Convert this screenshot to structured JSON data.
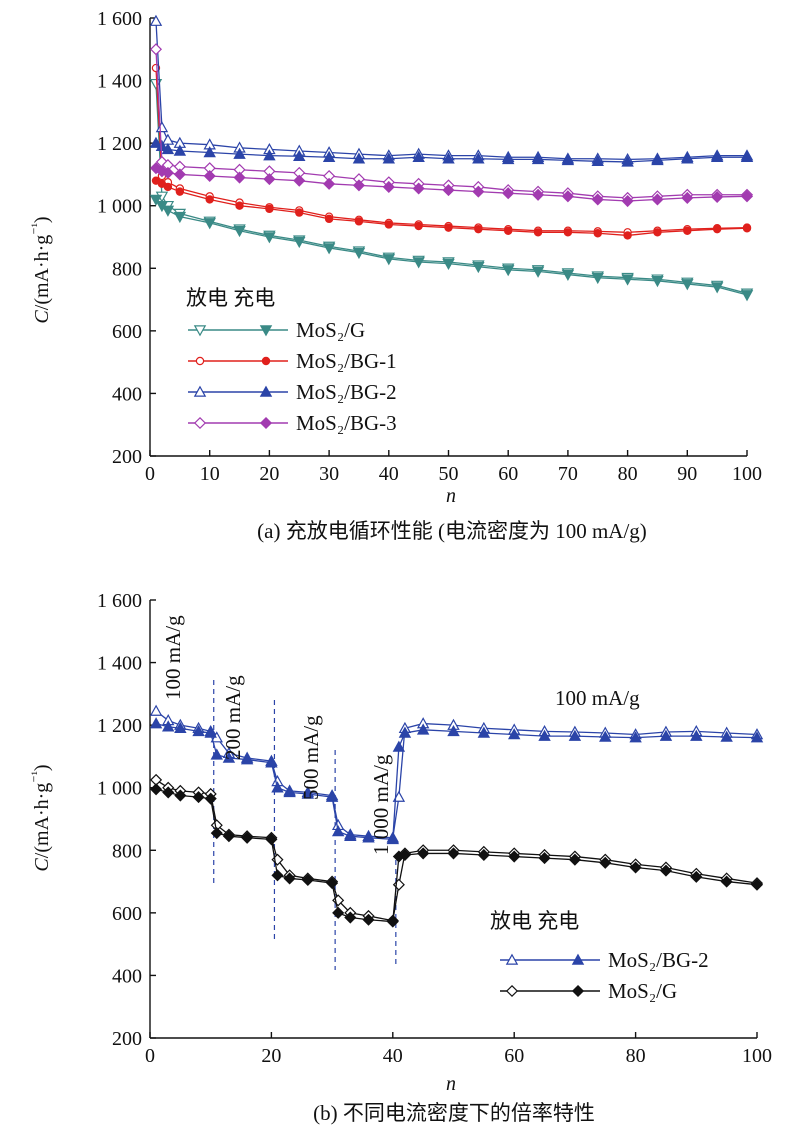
{
  "figure": {
    "captions": {
      "a": "(a) 充放电循环性能 (电流密度为 100 mA/g)",
      "b": "(b) 不同电流密度下的倍率特性"
    }
  },
  "chart_data": [
    {
      "id": "a",
      "type": "line",
      "ylabel": "C/(mA·h·g⁻¹)",
      "xlabel": "n",
      "ylim": [
        200,
        1600
      ],
      "xlim": [
        0,
        100
      ],
      "yticks": [
        200,
        400,
        600,
        800,
        1000,
        1200,
        1400,
        1600
      ],
      "ytick_labels": [
        "200",
        "400",
        "600",
        "800",
        "1 000",
        "1 200",
        "1 400",
        "1 600"
      ],
      "xticks": [
        0,
        10,
        20,
        30,
        40,
        50,
        60,
        70,
        80,
        90,
        100
      ],
      "legend_header": "放电 充电",
      "legend_position": "lower-left",
      "series": [
        {
          "name": "MoS₂/G",
          "color": "#3a8a86",
          "marker": "tri_down",
          "x": [
            1,
            2,
            3,
            5,
            10,
            15,
            20,
            25,
            30,
            35,
            40,
            45,
            50,
            55,
            60,
            65,
            70,
            75,
            80,
            85,
            90,
            95,
            100
          ],
          "discharge": [
            1390,
            1030,
            1000,
            975,
            950,
            925,
            905,
            890,
            870,
            855,
            835,
            825,
            820,
            810,
            800,
            795,
            785,
            775,
            770,
            765,
            755,
            745,
            720
          ],
          "charge": [
            1020,
            1000,
            985,
            965,
            945,
            920,
            900,
            885,
            865,
            850,
            830,
            820,
            815,
            805,
            795,
            790,
            780,
            770,
            765,
            760,
            750,
            740,
            715
          ]
        },
        {
          "name": "MoS₂/BG-1",
          "color": "#e0201c",
          "marker": "circle",
          "x": [
            1,
            2,
            3,
            5,
            10,
            15,
            20,
            25,
            30,
            35,
            40,
            45,
            50,
            55,
            60,
            65,
            70,
            75,
            80,
            85,
            90,
            95,
            100
          ],
          "discharge": [
            1440,
            1095,
            1075,
            1055,
            1030,
            1010,
            995,
            985,
            965,
            955,
            945,
            940,
            935,
            930,
            925,
            920,
            920,
            918,
            915,
            920,
            925,
            928,
            930
          ],
          "charge": [
            1080,
            1070,
            1060,
            1045,
            1020,
            1000,
            990,
            978,
            958,
            950,
            940,
            935,
            930,
            925,
            920,
            915,
            915,
            912,
            905,
            915,
            920,
            925,
            928
          ]
        },
        {
          "name": "MoS₂/BG-2",
          "color": "#2b44a8",
          "marker": "tri_up",
          "x": [
            1,
            2,
            3,
            5,
            10,
            15,
            20,
            25,
            30,
            35,
            40,
            45,
            50,
            55,
            60,
            65,
            70,
            75,
            80,
            85,
            90,
            95,
            100
          ],
          "discharge": [
            1590,
            1250,
            1210,
            1200,
            1195,
            1185,
            1180,
            1175,
            1170,
            1165,
            1160,
            1165,
            1160,
            1160,
            1155,
            1155,
            1150,
            1150,
            1148,
            1150,
            1155,
            1160,
            1160
          ],
          "charge": [
            1200,
            1190,
            1180,
            1175,
            1170,
            1165,
            1160,
            1158,
            1155,
            1150,
            1150,
            1155,
            1150,
            1150,
            1148,
            1148,
            1145,
            1142,
            1140,
            1145,
            1150,
            1155,
            1155
          ]
        },
        {
          "name": "MoS₂/BG-3",
          "color": "#a23bb0",
          "marker": "diamond",
          "x": [
            1,
            2,
            3,
            5,
            10,
            15,
            20,
            25,
            30,
            35,
            40,
            45,
            50,
            55,
            60,
            65,
            70,
            75,
            80,
            85,
            90,
            95,
            100
          ],
          "discharge": [
            1500,
            1140,
            1130,
            1125,
            1120,
            1115,
            1110,
            1105,
            1095,
            1085,
            1075,
            1070,
            1065,
            1060,
            1050,
            1045,
            1040,
            1030,
            1025,
            1030,
            1035,
            1035,
            1035
          ],
          "charge": [
            1120,
            1110,
            1105,
            1100,
            1095,
            1090,
            1085,
            1080,
            1070,
            1065,
            1060,
            1055,
            1050,
            1045,
            1040,
            1035,
            1030,
            1020,
            1015,
            1020,
            1025,
            1028,
            1030
          ]
        }
      ]
    },
    {
      "id": "b",
      "type": "line",
      "ylabel": "C/(mA·h·g⁻¹)",
      "xlabel": "n",
      "ylim": [
        200,
        1600
      ],
      "xlim": [
        0,
        100
      ],
      "yticks": [
        200,
        400,
        600,
        800,
        1000,
        1200,
        1400,
        1600
      ],
      "ytick_labels": [
        "200",
        "400",
        "600",
        "800",
        "1 000",
        "1 200",
        "1 400",
        "1 600"
      ],
      "xticks": [
        0,
        20,
        40,
        60,
        80,
        100
      ],
      "legend_header": "放电 充电",
      "legend_position": "lower-right",
      "rate_labels": [
        "100 mA/g",
        "200 mA/g",
        "500 mA/g",
        "1 000 mA/g",
        "100 mA/g"
      ],
      "segment_boundaries": [
        10.5,
        20.5,
        30.5,
        40.5
      ],
      "series": [
        {
          "name": "MoS₂/BG-2",
          "color": "#2b44a8",
          "marker": "tri_up",
          "x": [
            1,
            3,
            5,
            8,
            10,
            11,
            13,
            16,
            20,
            21,
            23,
            26,
            30,
            31,
            33,
            36,
            40,
            41,
            42,
            45,
            50,
            55,
            60,
            65,
            70,
            75,
            80,
            85,
            90,
            95,
            100
          ],
          "discharge": [
            1245,
            1215,
            1200,
            1190,
            1180,
            1160,
            1110,
            1095,
            1085,
            1020,
            990,
            985,
            975,
            880,
            850,
            845,
            840,
            970,
            1190,
            1205,
            1200,
            1190,
            1185,
            1180,
            1178,
            1175,
            1170,
            1178,
            1180,
            1175,
            1170
          ],
          "charge": [
            1205,
            1195,
            1190,
            1180,
            1175,
            1105,
            1095,
            1090,
            1080,
            1000,
            985,
            980,
            970,
            860,
            845,
            840,
            835,
            1130,
            1175,
            1185,
            1180,
            1175,
            1170,
            1165,
            1165,
            1162,
            1160,
            1165,
            1165,
            1162,
            1160
          ]
        },
        {
          "name": "MoS₂/G",
          "color": "#111111",
          "marker": "diamond",
          "x": [
            1,
            3,
            5,
            8,
            10,
            11,
            13,
            16,
            20,
            21,
            23,
            26,
            30,
            31,
            33,
            36,
            40,
            41,
            42,
            45,
            50,
            55,
            60,
            65,
            70,
            75,
            80,
            85,
            90,
            95,
            100
          ],
          "discharge": [
            1025,
            1000,
            990,
            985,
            980,
            880,
            850,
            845,
            840,
            770,
            720,
            710,
            700,
            640,
            600,
            590,
            575,
            690,
            790,
            800,
            800,
            795,
            790,
            785,
            780,
            770,
            755,
            745,
            725,
            710,
            695
          ],
          "charge": [
            995,
            985,
            975,
            970,
            965,
            855,
            845,
            840,
            835,
            720,
            710,
            705,
            695,
            600,
            585,
            578,
            572,
            780,
            785,
            790,
            790,
            785,
            780,
            775,
            770,
            760,
            745,
            735,
            715,
            700,
            690
          ]
        }
      ]
    }
  ]
}
